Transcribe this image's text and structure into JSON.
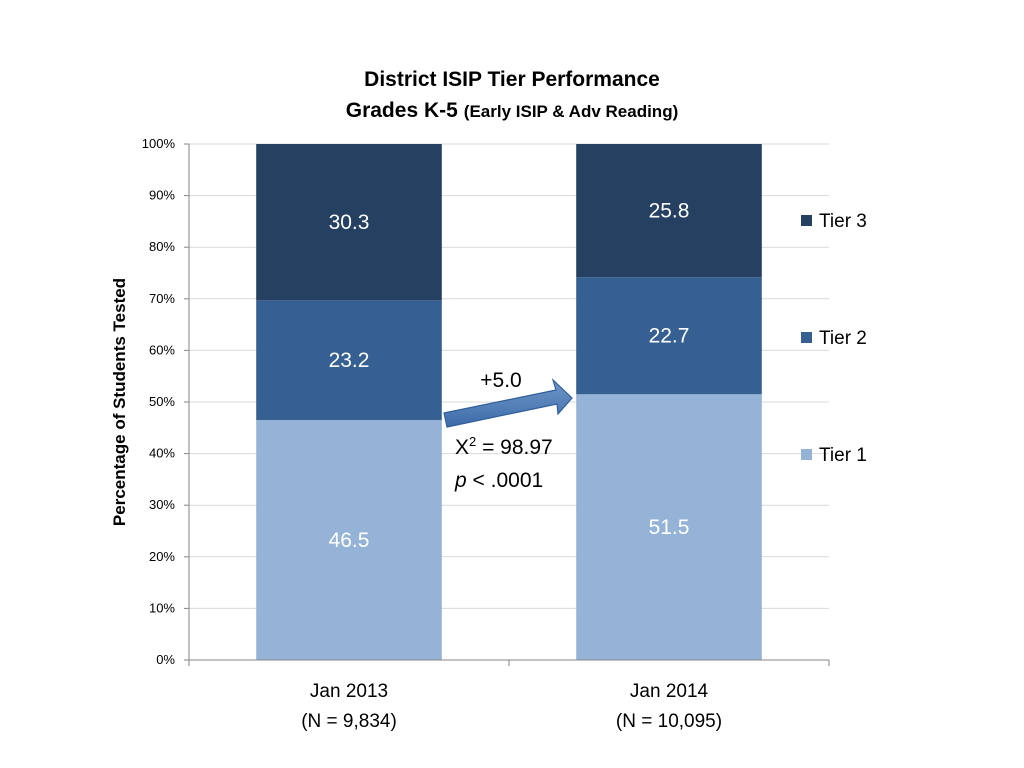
{
  "chart_data": {
    "type": "bar",
    "stacked": true,
    "title_line1": "District ISIP Tier Performance",
    "title_line2_main": "Grades K-5",
    "title_line2_sub": "(Early ISIP & Adv Reading)",
    "ylabel": "Percentage of Students Tested",
    "xlabel": "",
    "ylim": [
      0,
      100
    ],
    "yticks": [
      "0%",
      "10%",
      "20%",
      "30%",
      "40%",
      "50%",
      "60%",
      "70%",
      "80%",
      "90%",
      "100%"
    ],
    "categories": [
      "Jan 2013",
      "Jan 2014"
    ],
    "category_sublabels": [
      "(N = 9,834)",
      "(N = 10,095)"
    ],
    "series": [
      {
        "name": "Tier 1",
        "values": [
          46.5,
          51.5
        ],
        "labels": [
          "46.5",
          "51.5"
        ],
        "color": "#95B3D7"
      },
      {
        "name": "Tier 2",
        "values": [
          23.2,
          22.7
        ],
        "labels": [
          "23.2",
          "22.7"
        ],
        "color": "#376092"
      },
      {
        "name": "Tier 3",
        "values": [
          30.3,
          25.8
        ],
        "labels": [
          "30.3",
          "25.8"
        ],
        "color": "#254061"
      }
    ],
    "legend_position": "right",
    "grid": true,
    "annotations": {
      "arrow_label": "+5.0",
      "chi_prefix": "X",
      "chi_sup": "2",
      "chi_value": " = 98.97",
      "p_symbol": "p",
      "p_value": " < .0001"
    }
  }
}
